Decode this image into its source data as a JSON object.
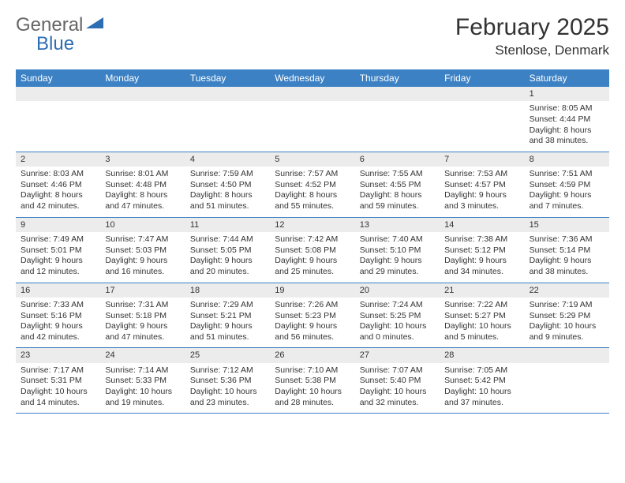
{
  "brand": {
    "word1": "General",
    "word2": "Blue"
  },
  "title": "February 2025",
  "location": "Stenlose, Denmark",
  "colors": {
    "header_bar": "#3c81c4",
    "header_text": "#ffffff",
    "daynum_bg": "#ececec",
    "rule": "#3c81c4",
    "body_text": "#333333",
    "brand_gray": "#666666",
    "brand_blue": "#2d6db3"
  },
  "typography": {
    "title_fontsize": 30,
    "location_fontsize": 17,
    "dow_fontsize": 12,
    "day_fontsize": 10.5
  },
  "days_of_week": [
    "Sunday",
    "Monday",
    "Tuesday",
    "Wednesday",
    "Thursday",
    "Friday",
    "Saturday"
  ],
  "weeks": [
    [
      {
        "n": "",
        "lines": []
      },
      {
        "n": "",
        "lines": []
      },
      {
        "n": "",
        "lines": []
      },
      {
        "n": "",
        "lines": []
      },
      {
        "n": "",
        "lines": []
      },
      {
        "n": "",
        "lines": []
      },
      {
        "n": "1",
        "lines": [
          "Sunrise: 8:05 AM",
          "Sunset: 4:44 PM",
          "Daylight: 8 hours and 38 minutes."
        ]
      }
    ],
    [
      {
        "n": "2",
        "lines": [
          "Sunrise: 8:03 AM",
          "Sunset: 4:46 PM",
          "Daylight: 8 hours and 42 minutes."
        ]
      },
      {
        "n": "3",
        "lines": [
          "Sunrise: 8:01 AM",
          "Sunset: 4:48 PM",
          "Daylight: 8 hours and 47 minutes."
        ]
      },
      {
        "n": "4",
        "lines": [
          "Sunrise: 7:59 AM",
          "Sunset: 4:50 PM",
          "Daylight: 8 hours and 51 minutes."
        ]
      },
      {
        "n": "5",
        "lines": [
          "Sunrise: 7:57 AM",
          "Sunset: 4:52 PM",
          "Daylight: 8 hours and 55 minutes."
        ]
      },
      {
        "n": "6",
        "lines": [
          "Sunrise: 7:55 AM",
          "Sunset: 4:55 PM",
          "Daylight: 8 hours and 59 minutes."
        ]
      },
      {
        "n": "7",
        "lines": [
          "Sunrise: 7:53 AM",
          "Sunset: 4:57 PM",
          "Daylight: 9 hours and 3 minutes."
        ]
      },
      {
        "n": "8",
        "lines": [
          "Sunrise: 7:51 AM",
          "Sunset: 4:59 PM",
          "Daylight: 9 hours and 7 minutes."
        ]
      }
    ],
    [
      {
        "n": "9",
        "lines": [
          "Sunrise: 7:49 AM",
          "Sunset: 5:01 PM",
          "Daylight: 9 hours and 12 minutes."
        ]
      },
      {
        "n": "10",
        "lines": [
          "Sunrise: 7:47 AM",
          "Sunset: 5:03 PM",
          "Daylight: 9 hours and 16 minutes."
        ]
      },
      {
        "n": "11",
        "lines": [
          "Sunrise: 7:44 AM",
          "Sunset: 5:05 PM",
          "Daylight: 9 hours and 20 minutes."
        ]
      },
      {
        "n": "12",
        "lines": [
          "Sunrise: 7:42 AM",
          "Sunset: 5:08 PM",
          "Daylight: 9 hours and 25 minutes."
        ]
      },
      {
        "n": "13",
        "lines": [
          "Sunrise: 7:40 AM",
          "Sunset: 5:10 PM",
          "Daylight: 9 hours and 29 minutes."
        ]
      },
      {
        "n": "14",
        "lines": [
          "Sunrise: 7:38 AM",
          "Sunset: 5:12 PM",
          "Daylight: 9 hours and 34 minutes."
        ]
      },
      {
        "n": "15",
        "lines": [
          "Sunrise: 7:36 AM",
          "Sunset: 5:14 PM",
          "Daylight: 9 hours and 38 minutes."
        ]
      }
    ],
    [
      {
        "n": "16",
        "lines": [
          "Sunrise: 7:33 AM",
          "Sunset: 5:16 PM",
          "Daylight: 9 hours and 42 minutes."
        ]
      },
      {
        "n": "17",
        "lines": [
          "Sunrise: 7:31 AM",
          "Sunset: 5:18 PM",
          "Daylight: 9 hours and 47 minutes."
        ]
      },
      {
        "n": "18",
        "lines": [
          "Sunrise: 7:29 AM",
          "Sunset: 5:21 PM",
          "Daylight: 9 hours and 51 minutes."
        ]
      },
      {
        "n": "19",
        "lines": [
          "Sunrise: 7:26 AM",
          "Sunset: 5:23 PM",
          "Daylight: 9 hours and 56 minutes."
        ]
      },
      {
        "n": "20",
        "lines": [
          "Sunrise: 7:24 AM",
          "Sunset: 5:25 PM",
          "Daylight: 10 hours and 0 minutes."
        ]
      },
      {
        "n": "21",
        "lines": [
          "Sunrise: 7:22 AM",
          "Sunset: 5:27 PM",
          "Daylight: 10 hours and 5 minutes."
        ]
      },
      {
        "n": "22",
        "lines": [
          "Sunrise: 7:19 AM",
          "Sunset: 5:29 PM",
          "Daylight: 10 hours and 9 minutes."
        ]
      }
    ],
    [
      {
        "n": "23",
        "lines": [
          "Sunrise: 7:17 AM",
          "Sunset: 5:31 PM",
          "Daylight: 10 hours and 14 minutes."
        ]
      },
      {
        "n": "24",
        "lines": [
          "Sunrise: 7:14 AM",
          "Sunset: 5:33 PM",
          "Daylight: 10 hours and 19 minutes."
        ]
      },
      {
        "n": "25",
        "lines": [
          "Sunrise: 7:12 AM",
          "Sunset: 5:36 PM",
          "Daylight: 10 hours and 23 minutes."
        ]
      },
      {
        "n": "26",
        "lines": [
          "Sunrise: 7:10 AM",
          "Sunset: 5:38 PM",
          "Daylight: 10 hours and 28 minutes."
        ]
      },
      {
        "n": "27",
        "lines": [
          "Sunrise: 7:07 AM",
          "Sunset: 5:40 PM",
          "Daylight: 10 hours and 32 minutes."
        ]
      },
      {
        "n": "28",
        "lines": [
          "Sunrise: 7:05 AM",
          "Sunset: 5:42 PM",
          "Daylight: 10 hours and 37 minutes."
        ]
      },
      {
        "n": "",
        "lines": []
      }
    ]
  ]
}
